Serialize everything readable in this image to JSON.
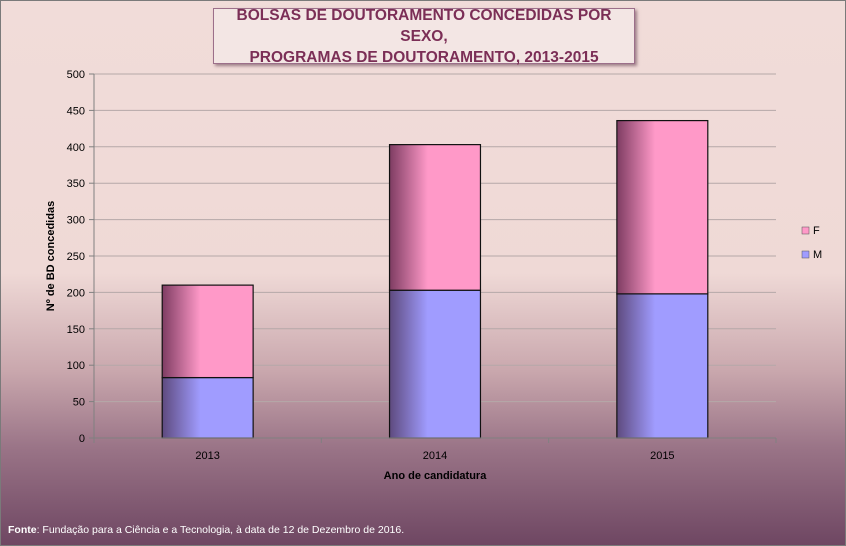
{
  "title_line1": "BOLSAS DE DOUTORAMENTO CONCEDIDAS POR SEXO,",
  "title_line2": "PROGRAMAS DE DOUTORAMENTO, 2013-2015",
  "source_label": "Fonte",
  "source_text": ": Fundação para a Ciência e a Tecnologia, à data de 12 de Dezembro de 2016.",
  "colors": {
    "M": "#a09cff",
    "F": "#ff99c8"
  },
  "chart_data": {
    "type": "bar",
    "stacked": true,
    "categories": [
      "2013",
      "2014",
      "2015"
    ],
    "series": [
      {
        "name": "M",
        "values": [
          83,
          203,
          198
        ]
      },
      {
        "name": "F",
        "values": [
          127,
          200,
          238
        ]
      }
    ],
    "xlabel": "Ano de candidatura",
    "ylabel": "Nº de BD concedidas",
    "ylim": [
      0,
      500
    ],
    "yticks": [
      0,
      50,
      100,
      150,
      200,
      250,
      300,
      350,
      400,
      450,
      500
    ],
    "grid": true,
    "legend": "right",
    "legend_order": [
      "F",
      "M"
    ]
  }
}
